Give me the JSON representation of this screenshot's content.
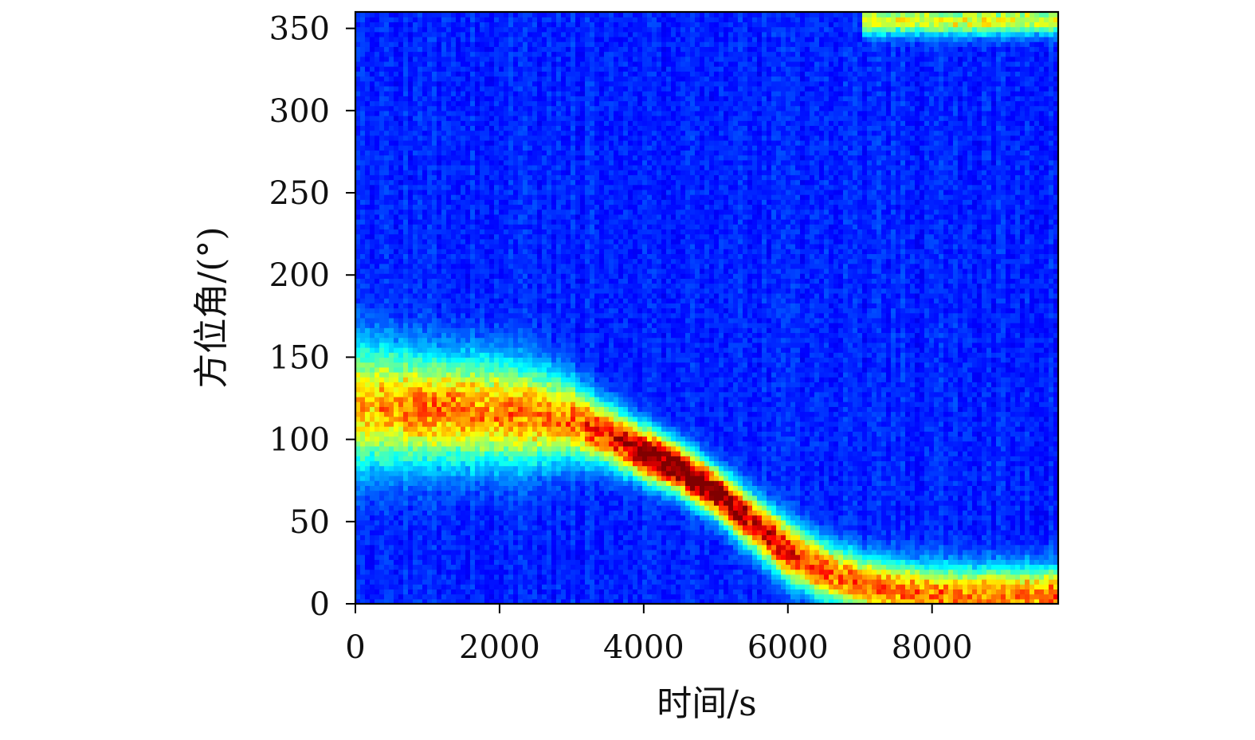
{
  "chart_data": {
    "type": "heatmap",
    "title": "",
    "xlabel": "时间/s",
    "ylabel": "方位角/(°)",
    "xlim": [
      0,
      9750
    ],
    "ylim": [
      0,
      360
    ],
    "x_ticks": [
      0,
      2000,
      4000,
      6000,
      8000
    ],
    "y_ticks": [
      0,
      50,
      100,
      150,
      200,
      250,
      300,
      350
    ],
    "x_tick_labels": [
      "0",
      "2000",
      "4000",
      "6000",
      "8000"
    ],
    "y_tick_labels": [
      "0",
      "50",
      "100",
      "150",
      "200",
      "250",
      "300",
      "350"
    ],
    "colormap": "jet",
    "grid": false,
    "track": {
      "name": "",
      "time_s": [
        0,
        500,
        1000,
        1500,
        2000,
        2500,
        3000,
        3500,
        4000,
        4500,
        5000,
        5500,
        6000,
        6500,
        7000,
        7500,
        8000,
        8500,
        9000,
        9750
      ],
      "azimuth_deg": [
        120,
        120,
        118,
        118,
        117,
        115,
        112,
        103,
        92,
        82,
        68,
        50,
        32,
        20,
        12,
        8,
        6,
        5,
        5,
        5
      ],
      "relative_intensity": [
        0.52,
        0.58,
        0.6,
        0.6,
        0.58,
        0.58,
        0.62,
        0.72,
        0.88,
        0.95,
        0.88,
        0.78,
        0.72,
        0.66,
        0.62,
        0.62,
        0.6,
        0.6,
        0.6,
        0.62
      ],
      "spread_deg": [
        26,
        24,
        22,
        22,
        22,
        20,
        16,
        12,
        11,
        10,
        10,
        11,
        12,
        12,
        12,
        12,
        12,
        12,
        12,
        12
      ]
    },
    "top_band": {
      "time_start_s": 7000,
      "time_end_s": 9750,
      "azimuth_deg": 355,
      "relative_intensity": 0.45
    }
  }
}
